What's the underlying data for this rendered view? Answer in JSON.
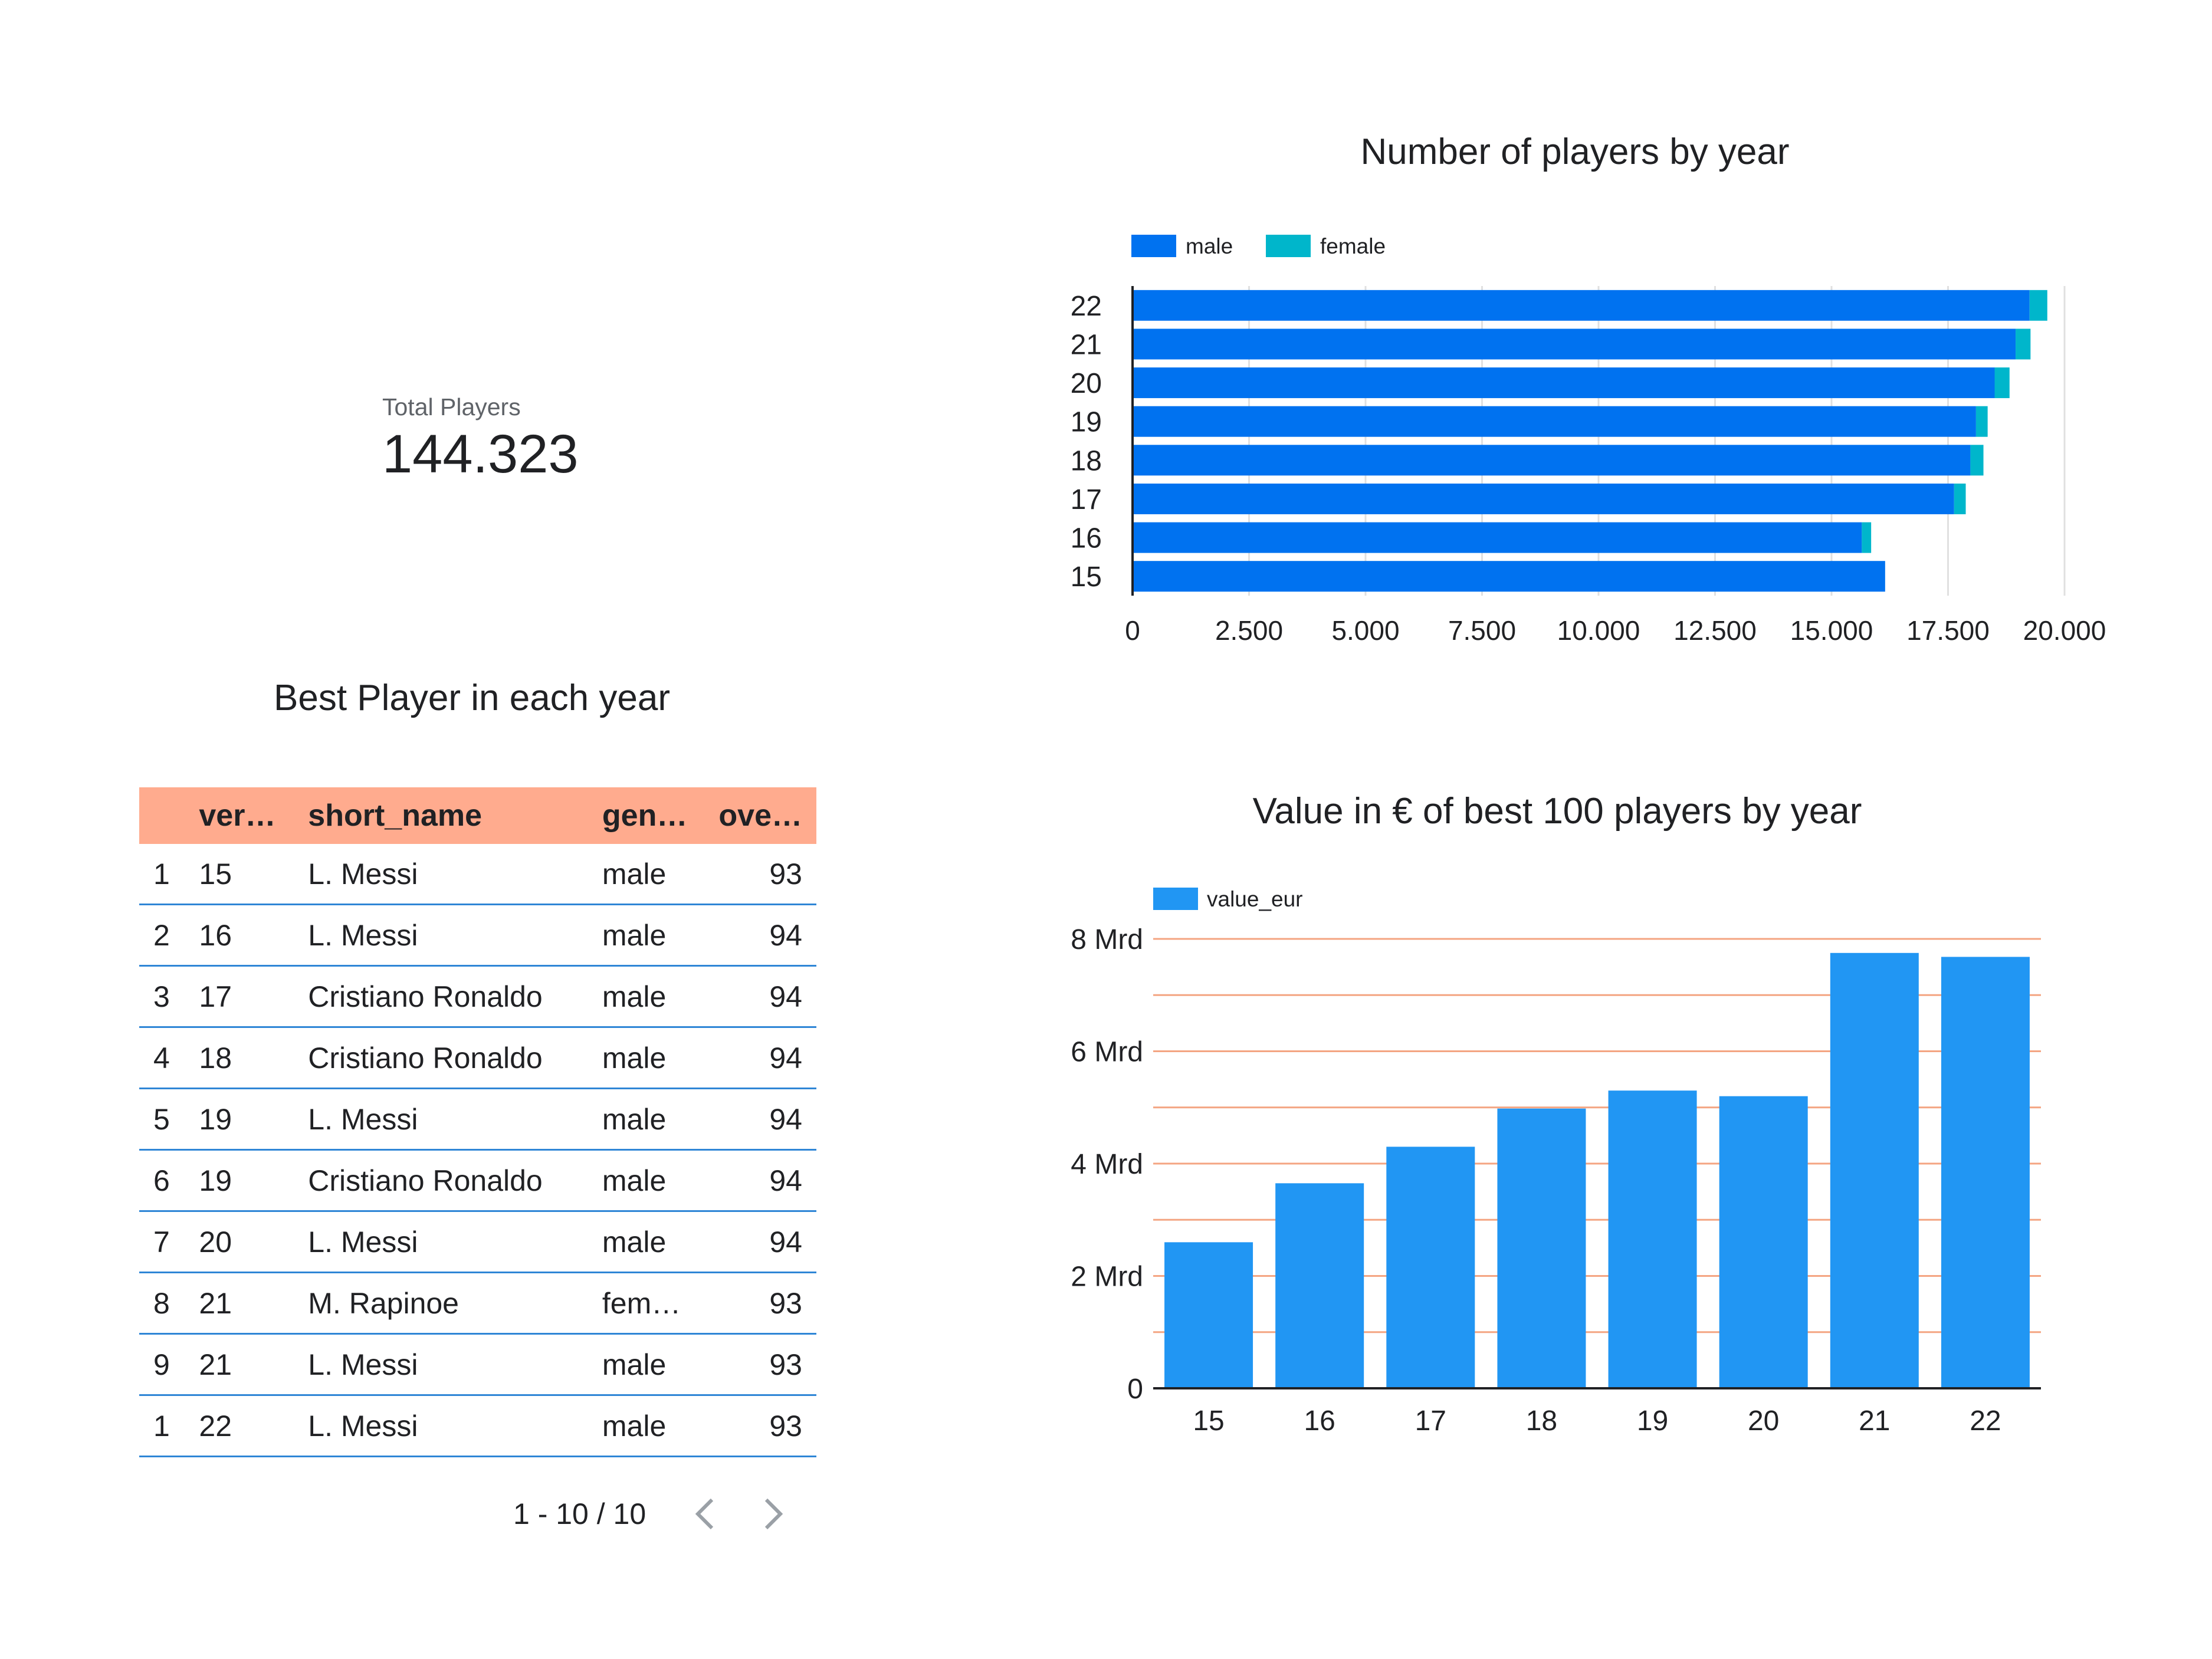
{
  "scorecard": {
    "label": "Total Players",
    "value": "144.323"
  },
  "table": {
    "title": "Best Player in each year",
    "columns": [
      "",
      "ver…",
      "short_name",
      "gen…",
      "ove…"
    ],
    "rows": [
      [
        "1",
        "15",
        "L. Messi",
        "male",
        "93"
      ],
      [
        "2",
        "16",
        "L. Messi",
        "male",
        "94"
      ],
      [
        "3",
        "17",
        "Cristiano Ronaldo",
        "male",
        "94"
      ],
      [
        "4",
        "18",
        "Cristiano Ronaldo",
        "male",
        "94"
      ],
      [
        "5",
        "19",
        "L. Messi",
        "male",
        "94"
      ],
      [
        "6",
        "19",
        "Cristiano Ronaldo",
        "male",
        "94"
      ],
      [
        "7",
        "20",
        "L. Messi",
        "male",
        "94"
      ],
      [
        "8",
        "21",
        "M. Rapinoe",
        "fem…",
        "93"
      ],
      [
        "9",
        "21",
        "L. Messi",
        "male",
        "93"
      ],
      [
        "1",
        "22",
        "L. Messi",
        "male",
        "93"
      ]
    ],
    "pagination": "1 - 10 / 10",
    "header_color": "#ffab8e",
    "row_border_color": "#2f86d6"
  },
  "icons": {
    "prev": "chevron-left-icon",
    "next": "chevron-right-icon"
  },
  "chart_data": [
    {
      "type": "bar",
      "orientation": "horizontal",
      "stacked": true,
      "title": "Number of players by year",
      "categories": [
        "22",
        "21",
        "20",
        "19",
        "18",
        "17",
        "16",
        "15"
      ],
      "series": [
        {
          "name": "male",
          "color": "#0072f0",
          "values": [
            19250,
            18950,
            18500,
            18100,
            17980,
            17630,
            15650,
            16150
          ]
        },
        {
          "name": "female",
          "color": "#00b6cb",
          "values": [
            380,
            320,
            320,
            250,
            280,
            250,
            200,
            0
          ]
        }
      ],
      "xlim": [
        0,
        20000
      ],
      "xticks": [
        "0",
        "2.500",
        "5.000",
        "7.500",
        "10.000",
        "12.500",
        "15.000",
        "17.500",
        "20.000"
      ],
      "legend": "top-left",
      "grid": true
    },
    {
      "type": "bar",
      "title": "Value in € of best 100 players by year",
      "categories": [
        "15",
        "16",
        "17",
        "18",
        "19",
        "20",
        "21",
        "22"
      ],
      "series": [
        {
          "name": "value_eur",
          "color": "#2196f3",
          "values": [
            2.6,
            3.65,
            4.3,
            4.98,
            5.3,
            5.2,
            7.75,
            7.68
          ]
        }
      ],
      "ylim": [
        0,
        8
      ],
      "yticks": [
        "0",
        "2 Mrd",
        "4 Mrd",
        "6 Mrd",
        "8 Mrd"
      ],
      "grid_color": "#f4a582",
      "legend": "top-left",
      "grid": true
    }
  ]
}
